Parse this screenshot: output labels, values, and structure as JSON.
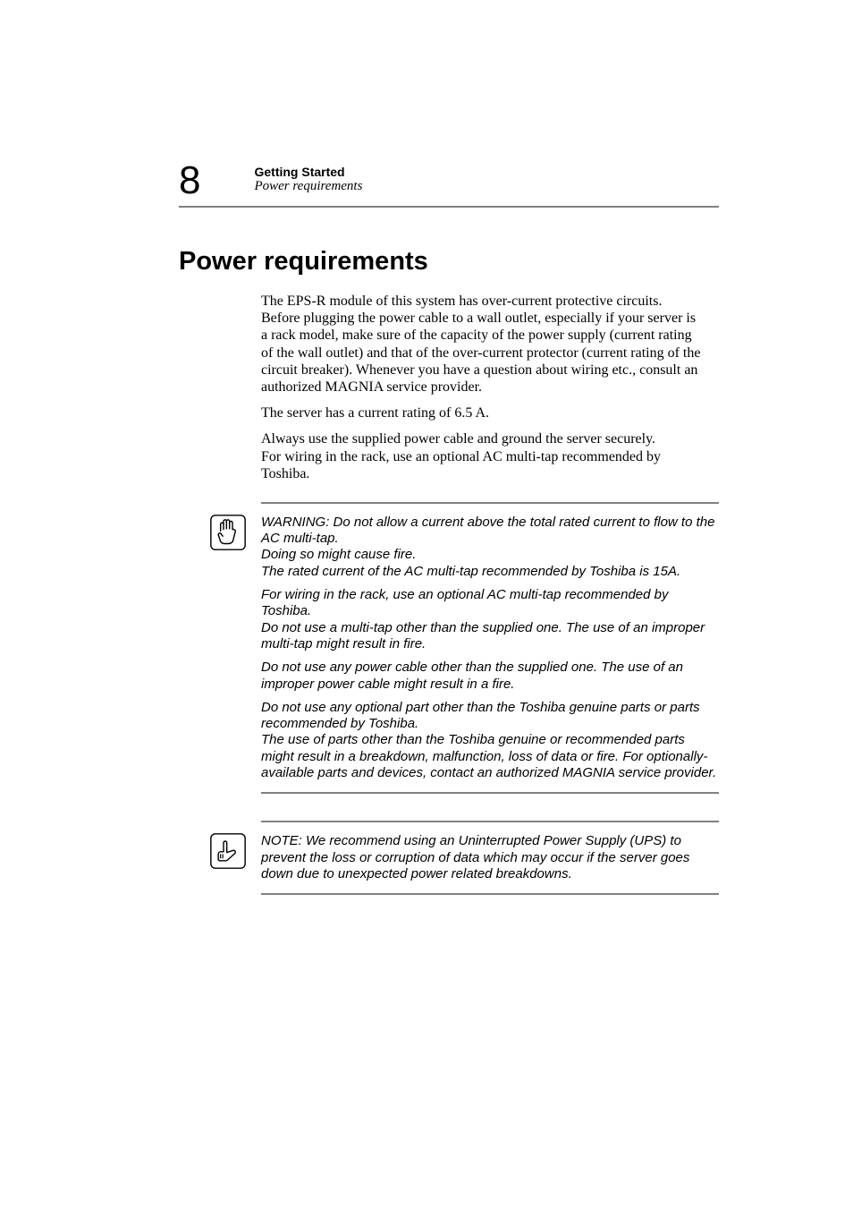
{
  "page": {
    "number": "8",
    "chapter": "Getting Started",
    "subchapter": "Power requirements",
    "section_title": "Power requirements",
    "background_color": "#ffffff",
    "rule_color": "#808080",
    "text_color": "#000000",
    "page_num_fontsize": 44,
    "section_title_fontsize": 29,
    "body_fontsize": 16,
    "callout_fontsize": 15,
    "body_font": "Times New Roman",
    "heading_font": "Arial"
  },
  "body": {
    "p1": "The EPS-R module of this system has over-current protective circuits.\nBefore plugging the power cable to a wall outlet, especially if your server is a rack model, make sure of the capacity of the power supply (current rating of the wall outlet) and that of the over-current protector (current rating of the circuit breaker). Whenever you have a question about wiring etc., consult an authorized MAGNIA service provider.",
    "p2": "The server has a current rating of 6.5 A.",
    "p3": "Always use the supplied power cable and ground the server securely.\nFor wiring in the rack, use an optional AC multi-tap recommended by Toshiba."
  },
  "warning": {
    "icon": "hand-stop-icon",
    "p1": "WARNING: Do not allow a current above the total rated current to flow to the AC multi-tap.\nDoing so might cause fire.\nThe rated current of the AC multi-tap recommended by Toshiba is 15A.",
    "p2": "For wiring in the rack, use an optional AC multi-tap recommended by Toshiba.\nDo not use a multi-tap other than the supplied one. The use of an improper multi-tap might result in fire.",
    "p3": "Do not use any power cable other than the supplied one. The use of an improper power cable might result in a fire.",
    "p4": "Do not use any optional part other than the Toshiba genuine parts or parts recommended by Toshiba.\nThe use of parts other than the Toshiba genuine or recommended parts might result in a breakdown, malfunction, loss of data or fire. For optionally-available parts and devices, contact an authorized MAGNIA service provider."
  },
  "note": {
    "icon": "note-pointer-icon",
    "p1": "NOTE: We recommend using an Uninterrupted Power Supply (UPS) to prevent the loss or corruption of data which may occur if the server goes down due to unexpected power related breakdowns."
  }
}
